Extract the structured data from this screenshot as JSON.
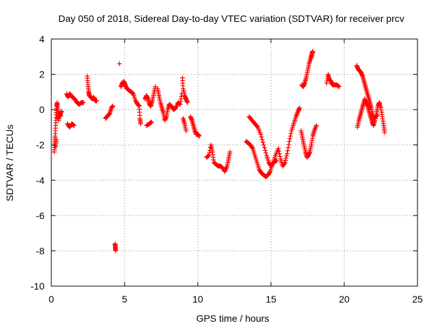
{
  "chart_data": {
    "type": "scatter",
    "title": "Day 050 of 2018, Sidereal Day-to-day VTEC variation (SDTVAR) for receiver prcv",
    "xlabel": "GPS time / hours",
    "ylabel": "SDTVAR / TECUs",
    "xlim": [
      0,
      25
    ],
    "ylim": [
      -10,
      4
    ],
    "xticks": [
      0,
      5,
      10,
      15,
      20,
      25
    ],
    "yticks": [
      -10,
      -8,
      -6,
      -4,
      -2,
      0,
      2,
      4
    ],
    "grid": true,
    "marker": "+",
    "marker_color": "#ff0000",
    "series": [
      {
        "name": "SDTVAR",
        "points": [
          [
            0.2,
            -2.4
          ],
          [
            0.23,
            -1.9
          ],
          [
            0.26,
            -1.5
          ],
          [
            0.3,
            -0.9
          ],
          [
            0.33,
            -0.3
          ],
          [
            0.37,
            0.2
          ],
          [
            0.4,
            0.4
          ],
          [
            0.45,
            -0.1
          ],
          [
            0.5,
            -0.6
          ],
          [
            0.55,
            -0.2
          ],
          [
            0.6,
            -0.4
          ],
          [
            0.65,
            -0.15
          ],
          [
            0.7,
            -0.1
          ],
          [
            0.3,
            -2.1
          ],
          [
            0.35,
            -1.7
          ],
          [
            0.4,
            -0.5
          ],
          [
            1.05,
            0.9
          ],
          [
            1.15,
            0.7
          ],
          [
            1.25,
            0.9
          ],
          [
            1.35,
            0.8
          ],
          [
            1.45,
            0.7
          ],
          [
            1.6,
            0.6
          ],
          [
            1.75,
            0.4
          ],
          [
            1.9,
            0.3
          ],
          [
            2.05,
            0.4
          ],
          [
            2.2,
            0.4
          ],
          [
            1.1,
            -0.8
          ],
          [
            1.25,
            -1.0
          ],
          [
            1.4,
            -0.8
          ],
          [
            1.55,
            -0.9
          ],
          [
            2.45,
            1.9
          ],
          [
            2.5,
            1.4
          ],
          [
            2.55,
            1.0
          ],
          [
            2.6,
            0.8
          ],
          [
            2.7,
            0.7
          ],
          [
            2.8,
            0.6
          ],
          [
            2.9,
            0.7
          ],
          [
            3.0,
            0.5
          ],
          [
            3.1,
            0.5
          ],
          [
            3.7,
            -0.5
          ],
          [
            3.8,
            -0.4
          ],
          [
            3.9,
            -0.3
          ],
          [
            4.0,
            -0.2
          ],
          [
            4.1,
            0.1
          ],
          [
            4.2,
            0.2
          ],
          [
            4.65,
            2.6
          ],
          [
            4.35,
            -7.6
          ],
          [
            4.37,
            -7.8
          ],
          [
            4.39,
            -8.0
          ],
          [
            4.75,
            1.3
          ],
          [
            4.85,
            1.5
          ],
          [
            4.95,
            1.6
          ],
          [
            5.05,
            1.4
          ],
          [
            5.15,
            1.2
          ],
          [
            5.3,
            1.1
          ],
          [
            5.45,
            1.0
          ],
          [
            5.6,
            0.9
          ],
          [
            5.75,
            0.5
          ],
          [
            5.9,
            0.3
          ],
          [
            6.0,
            0.2
          ],
          [
            6.05,
            -0.5
          ],
          [
            6.1,
            -0.8
          ],
          [
            6.4,
            0.6
          ],
          [
            6.5,
            0.8
          ],
          [
            6.6,
            0.6
          ],
          [
            6.7,
            0.3
          ],
          [
            6.8,
            0.2
          ],
          [
            6.9,
            0.5
          ],
          [
            7.0,
            0.9
          ],
          [
            7.1,
            1.3
          ],
          [
            6.5,
            -0.9
          ],
          [
            6.7,
            -0.8
          ],
          [
            6.85,
            -0.7
          ],
          [
            7.25,
            1.2
          ],
          [
            7.35,
            0.8
          ],
          [
            7.45,
            0.4
          ],
          [
            7.55,
            0.1
          ],
          [
            7.65,
            -0.2
          ],
          [
            7.75,
            -0.6
          ],
          [
            7.85,
            -0.4
          ],
          [
            7.95,
            0.0
          ],
          [
            8.05,
            0.3
          ],
          [
            8.2,
            0.2
          ],
          [
            8.35,
            0.0
          ],
          [
            8.5,
            0.1
          ],
          [
            8.65,
            0.4
          ],
          [
            8.8,
            0.3
          ],
          [
            8.9,
            0.9
          ],
          [
            8.95,
            1.8
          ],
          [
            9.0,
            1.2
          ],
          [
            9.1,
            0.8
          ],
          [
            9.2,
            0.6
          ],
          [
            9.3,
            0.4
          ],
          [
            9.0,
            -0.5
          ],
          [
            9.1,
            -0.8
          ],
          [
            9.2,
            -1.2
          ],
          [
            9.5,
            -0.4
          ],
          [
            9.6,
            -0.6
          ],
          [
            9.7,
            -0.9
          ],
          [
            9.8,
            -1.2
          ],
          [
            9.9,
            -1.4
          ],
          [
            10.0,
            -1.4
          ],
          [
            10.1,
            -1.5
          ],
          [
            10.6,
            -2.7
          ],
          [
            10.75,
            -2.6
          ],
          [
            10.9,
            -2.0
          ],
          [
            11.0,
            -2.4
          ],
          [
            11.1,
            -3.0
          ],
          [
            11.25,
            -3.1
          ],
          [
            11.4,
            -3.2
          ],
          [
            11.55,
            -3.2
          ],
          [
            11.7,
            -3.3
          ],
          [
            11.85,
            -3.5
          ],
          [
            12.0,
            -3.2
          ],
          [
            12.1,
            -2.8
          ],
          [
            12.2,
            -2.4
          ],
          [
            13.3,
            -1.8
          ],
          [
            13.45,
            -1.9
          ],
          [
            13.6,
            -2.0
          ],
          [
            13.75,
            -2.2
          ],
          [
            13.9,
            -2.6
          ],
          [
            14.05,
            -3.0
          ],
          [
            14.2,
            -3.4
          ],
          [
            14.35,
            -3.6
          ],
          [
            14.5,
            -3.7
          ],
          [
            14.65,
            -3.8
          ],
          [
            14.8,
            -3.7
          ],
          [
            14.95,
            -3.5
          ],
          [
            15.1,
            -3.1
          ],
          [
            15.25,
            -2.9
          ],
          [
            15.4,
            -2.9
          ],
          [
            13.5,
            -0.4
          ],
          [
            13.7,
            -0.6
          ],
          [
            13.9,
            -0.8
          ],
          [
            14.1,
            -1.0
          ],
          [
            14.3,
            -1.4
          ],
          [
            14.5,
            -2.0
          ],
          [
            14.7,
            -2.6
          ],
          [
            14.85,
            -3.0
          ],
          [
            15.0,
            -3.2
          ],
          [
            15.15,
            -3.0
          ],
          [
            15.3,
            -2.6
          ],
          [
            15.5,
            -2.2
          ],
          [
            15.65,
            -2.8
          ],
          [
            15.8,
            -3.2
          ],
          [
            15.95,
            -3.0
          ],
          [
            16.1,
            -2.5
          ],
          [
            16.25,
            -1.8
          ],
          [
            16.4,
            -1.2
          ],
          [
            16.55,
            -0.8
          ],
          [
            16.7,
            -0.4
          ],
          [
            16.85,
            -0.1
          ],
          [
            16.95,
            0.1
          ],
          [
            17.05,
            -1.2
          ],
          [
            17.15,
            -1.6
          ],
          [
            17.25,
            -2.0
          ],
          [
            17.35,
            -2.4
          ],
          [
            17.45,
            -2.7
          ],
          [
            17.55,
            -2.6
          ],
          [
            17.65,
            -2.4
          ],
          [
            17.75,
            -2.0
          ],
          [
            17.85,
            -1.5
          ],
          [
            17.95,
            -1.2
          ],
          [
            18.1,
            -0.9
          ],
          [
            17.1,
            1.4
          ],
          [
            17.2,
            1.3
          ],
          [
            17.3,
            1.5
          ],
          [
            17.4,
            1.8
          ],
          [
            17.5,
            2.2
          ],
          [
            17.6,
            2.6
          ],
          [
            17.7,
            2.9
          ],
          [
            17.8,
            3.2
          ],
          [
            17.85,
            3.3
          ],
          [
            17.75,
            2.9
          ],
          [
            18.8,
            1.5
          ],
          [
            18.9,
            2.0
          ],
          [
            19.0,
            1.7
          ],
          [
            19.1,
            1.6
          ],
          [
            19.2,
            1.4
          ],
          [
            19.35,
            1.4
          ],
          [
            19.5,
            1.4
          ],
          [
            19.65,
            1.3
          ],
          [
            20.85,
            2.5
          ],
          [
            20.95,
            2.3
          ],
          [
            21.05,
            2.2
          ],
          [
            21.15,
            2.1
          ],
          [
            21.25,
            1.9
          ],
          [
            21.35,
            1.6
          ],
          [
            21.45,
            1.3
          ],
          [
            21.55,
            1.0
          ],
          [
            21.65,
            0.7
          ],
          [
            21.75,
            0.4
          ],
          [
            21.85,
            0.1
          ],
          [
            21.95,
            -0.3
          ],
          [
            22.05,
            -0.5
          ],
          [
            22.15,
            -0.4
          ],
          [
            22.25,
            -0.3
          ],
          [
            20.9,
            -1.0
          ],
          [
            21.0,
            -0.6
          ],
          [
            21.1,
            -0.3
          ],
          [
            21.2,
            0.0
          ],
          [
            21.3,
            0.3
          ],
          [
            21.4,
            0.6
          ],
          [
            21.5,
            0.4
          ],
          [
            21.6,
            0.2
          ],
          [
            21.7,
            -0.1
          ],
          [
            21.8,
            -0.4
          ],
          [
            21.9,
            -0.7
          ],
          [
            22.0,
            -0.9
          ],
          [
            22.1,
            -0.6
          ],
          [
            22.2,
            -0.2
          ],
          [
            22.3,
            0.2
          ],
          [
            22.4,
            0.4
          ],
          [
            22.5,
            0.1
          ],
          [
            22.6,
            -0.4
          ],
          [
            22.7,
            -0.9
          ],
          [
            22.75,
            -1.3
          ]
        ]
      }
    ]
  }
}
